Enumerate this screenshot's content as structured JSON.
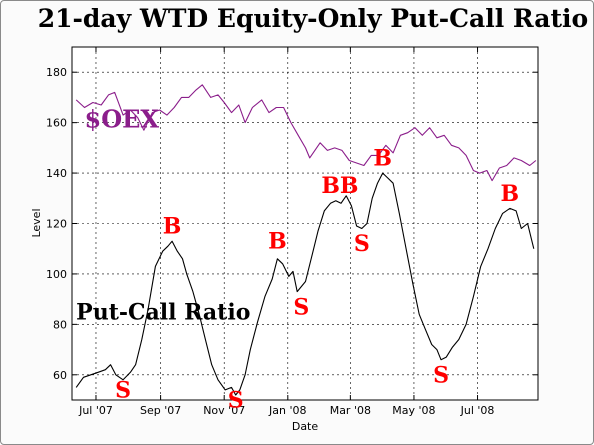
{
  "chart_data": {
    "type": "line",
    "title": "21-day WTD Equity-Only Put-Call Ratio",
    "xlabel": "Date",
    "ylabel": "Level",
    "ylim": [
      50,
      190
    ],
    "yticks": [
      60,
      80,
      100,
      120,
      140,
      160,
      180
    ],
    "xlim": [
      "2007-06-08",
      "2008-08-28"
    ],
    "xticks": [
      {
        "date": "2007-07-01",
        "label": "Jul '07"
      },
      {
        "date": "2007-09-01",
        "label": "Sep '07"
      },
      {
        "date": "2007-11-01",
        "label": "Nov '07"
      },
      {
        "date": "2008-01-01",
        "label": "Jan '08"
      },
      {
        "date": "2008-03-01",
        "label": "Mar '08"
      },
      {
        "date": "2008-05-01",
        "label": "May '08"
      },
      {
        "date": "2008-07-01",
        "label": "Jul '08"
      }
    ],
    "grid": true,
    "series": [
      {
        "name": "$OEX",
        "color": "#8b1e8b",
        "points": [
          [
            "2007-06-12",
            169
          ],
          [
            "2007-06-20",
            166
          ],
          [
            "2007-06-28",
            168
          ],
          [
            "2007-07-06",
            167
          ],
          [
            "2007-07-13",
            171
          ],
          [
            "2007-07-19",
            172
          ],
          [
            "2007-07-27",
            163
          ],
          [
            "2007-08-03",
            165
          ],
          [
            "2007-08-10",
            162
          ],
          [
            "2007-08-16",
            157
          ],
          [
            "2007-08-24",
            164
          ],
          [
            "2007-08-31",
            165
          ],
          [
            "2007-09-07",
            163
          ],
          [
            "2007-09-14",
            166
          ],
          [
            "2007-09-21",
            170
          ],
          [
            "2007-09-28",
            170
          ],
          [
            "2007-10-05",
            173
          ],
          [
            "2007-10-11",
            175
          ],
          [
            "2007-10-19",
            170
          ],
          [
            "2007-10-26",
            171
          ],
          [
            "2007-11-01",
            168
          ],
          [
            "2007-11-08",
            164
          ],
          [
            "2007-11-15",
            167
          ],
          [
            "2007-11-21",
            160
          ],
          [
            "2007-11-28",
            166
          ],
          [
            "2007-12-07",
            169
          ],
          [
            "2007-12-14",
            164
          ],
          [
            "2007-12-21",
            166
          ],
          [
            "2007-12-28",
            166
          ],
          [
            "2008-01-04",
            160
          ],
          [
            "2008-01-11",
            155
          ],
          [
            "2008-01-18",
            150
          ],
          [
            "2008-01-22",
            146
          ],
          [
            "2008-02-01",
            152
          ],
          [
            "2008-02-08",
            149
          ],
          [
            "2008-02-15",
            150
          ],
          [
            "2008-02-22",
            149
          ],
          [
            "2008-02-29",
            145
          ],
          [
            "2008-03-07",
            144
          ],
          [
            "2008-03-14",
            143
          ],
          [
            "2008-03-21",
            147
          ],
          [
            "2008-03-28",
            147
          ],
          [
            "2008-04-04",
            151
          ],
          [
            "2008-04-11",
            148
          ],
          [
            "2008-04-18",
            155
          ],
          [
            "2008-04-25",
            156
          ],
          [
            "2008-05-02",
            158
          ],
          [
            "2008-05-09",
            155
          ],
          [
            "2008-05-16",
            158
          ],
          [
            "2008-05-23",
            154
          ],
          [
            "2008-05-30",
            155
          ],
          [
            "2008-06-06",
            151
          ],
          [
            "2008-06-13",
            150
          ],
          [
            "2008-06-20",
            147
          ],
          [
            "2008-06-27",
            141
          ],
          [
            "2008-07-03",
            140
          ],
          [
            "2008-07-10",
            141
          ],
          [
            "2008-07-15",
            137
          ],
          [
            "2008-07-22",
            142
          ],
          [
            "2008-07-29",
            143
          ],
          [
            "2008-08-05",
            146
          ],
          [
            "2008-08-12",
            145
          ],
          [
            "2008-08-20",
            143
          ],
          [
            "2008-08-26",
            145
          ]
        ]
      },
      {
        "name": "Put-Call Ratio",
        "color": "#000000",
        "points": [
          [
            "2007-06-12",
            55
          ],
          [
            "2007-06-19",
            59
          ],
          [
            "2007-06-26",
            60
          ],
          [
            "2007-07-03",
            61
          ],
          [
            "2007-07-10",
            62
          ],
          [
            "2007-07-15",
            64
          ],
          [
            "2007-07-20",
            60
          ],
          [
            "2007-07-27",
            58
          ],
          [
            "2007-08-03",
            61
          ],
          [
            "2007-08-08",
            64
          ],
          [
            "2007-08-14",
            74
          ],
          [
            "2007-08-20",
            86
          ],
          [
            "2007-08-27",
            103
          ],
          [
            "2007-09-03",
            109
          ],
          [
            "2007-09-08",
            111
          ],
          [
            "2007-09-12",
            113
          ],
          [
            "2007-09-17",
            109
          ],
          [
            "2007-09-22",
            106
          ],
          [
            "2007-09-26",
            100
          ],
          [
            "2007-10-02",
            93
          ],
          [
            "2007-10-08",
            84
          ],
          [
            "2007-10-14",
            74
          ],
          [
            "2007-10-20",
            64
          ],
          [
            "2007-10-26",
            58
          ],
          [
            "2007-11-02",
            54
          ],
          [
            "2007-11-08",
            55
          ],
          [
            "2007-11-12",
            52
          ],
          [
            "2007-11-16",
            54
          ],
          [
            "2007-11-21",
            60
          ],
          [
            "2007-11-26",
            70
          ],
          [
            "2007-12-03",
            81
          ],
          [
            "2007-12-10",
            91
          ],
          [
            "2007-12-17",
            98
          ],
          [
            "2007-12-22",
            106
          ],
          [
            "2007-12-27",
            104
          ],
          [
            "2008-01-02",
            99
          ],
          [
            "2008-01-06",
            101
          ],
          [
            "2008-01-10",
            93
          ],
          [
            "2008-01-14",
            95
          ],
          [
            "2008-01-18",
            97
          ],
          [
            "2008-01-24",
            107
          ],
          [
            "2008-01-30",
            117
          ],
          [
            "2008-02-05",
            125
          ],
          [
            "2008-02-11",
            128
          ],
          [
            "2008-02-16",
            129
          ],
          [
            "2008-02-21",
            128
          ],
          [
            "2008-02-26",
            131
          ],
          [
            "2008-03-02",
            127
          ],
          [
            "2008-03-07",
            119
          ],
          [
            "2008-03-12",
            118
          ],
          [
            "2008-03-17",
            120
          ],
          [
            "2008-03-22",
            130
          ],
          [
            "2008-03-27",
            136
          ],
          [
            "2008-04-01",
            140
          ],
          [
            "2008-04-06",
            138
          ],
          [
            "2008-04-11",
            136
          ],
          [
            "2008-04-17",
            124
          ],
          [
            "2008-04-23",
            111
          ],
          [
            "2008-04-30",
            96
          ],
          [
            "2008-05-06",
            84
          ],
          [
            "2008-05-12",
            78
          ],
          [
            "2008-05-18",
            72
          ],
          [
            "2008-05-23",
            70
          ],
          [
            "2008-05-27",
            66
          ],
          [
            "2008-06-01",
            67
          ],
          [
            "2008-06-07",
            71
          ],
          [
            "2008-06-13",
            74
          ],
          [
            "2008-06-20",
            80
          ],
          [
            "2008-06-27",
            91
          ],
          [
            "2008-07-04",
            103
          ],
          [
            "2008-07-11",
            110
          ],
          [
            "2008-07-18",
            118
          ],
          [
            "2008-07-25",
            124
          ],
          [
            "2008-08-01",
            126
          ],
          [
            "2008-08-07",
            125
          ],
          [
            "2008-08-12",
            118
          ],
          [
            "2008-08-18",
            120
          ],
          [
            "2008-08-24",
            110
          ]
        ]
      }
    ],
    "annotations": [
      {
        "text": "$OEX",
        "kind": "series-label",
        "at": [
          "2007-06-20",
          158
        ]
      },
      {
        "text": "Put-Call Ratio",
        "kind": "series-label",
        "at": [
          "2007-06-12",
          82
        ]
      },
      {
        "text": "S",
        "kind": "signal",
        "at": [
          "2007-07-27",
          51
        ]
      },
      {
        "text": "B",
        "kind": "signal",
        "at": [
          "2007-09-12",
          116
        ]
      },
      {
        "text": "S",
        "kind": "signal",
        "at": [
          "2007-11-12",
          47
        ]
      },
      {
        "text": "B",
        "kind": "signal",
        "at": [
          "2007-12-22",
          110
        ]
      },
      {
        "text": "S",
        "kind": "signal",
        "at": [
          "2008-01-14",
          84
        ]
      },
      {
        "text": "BB",
        "kind": "signal",
        "at": [
          "2008-02-20",
          132
        ]
      },
      {
        "text": "S",
        "kind": "signal",
        "at": [
          "2008-03-12",
          109
        ]
      },
      {
        "text": "B",
        "kind": "signal",
        "at": [
          "2008-04-01",
          143
        ]
      },
      {
        "text": "S",
        "kind": "signal",
        "at": [
          "2008-05-27",
          57
        ]
      },
      {
        "text": "B",
        "kind": "signal",
        "at": [
          "2008-08-01",
          129
        ]
      }
    ]
  }
}
